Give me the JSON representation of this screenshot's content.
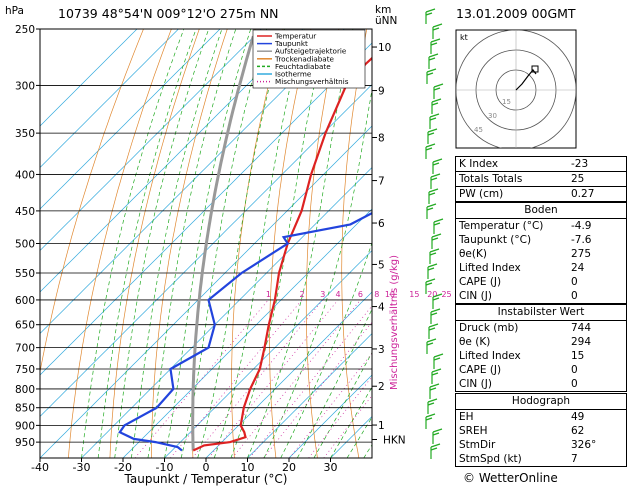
{
  "header": {
    "station": "10739  48°54'N  009°12'O   275m  NN",
    "datetime": "13.01.2009  00GMT"
  },
  "colors": {
    "temperature": "#dd2222",
    "dewpoint": "#2244dd",
    "parcel": "#999999",
    "dry_adiabat": "#e08830",
    "moist_adiabat": "#22aa22",
    "isotherm": "#33aadd",
    "mixing_ratio": "#cc2299",
    "wind": "#22aa22"
  },
  "chart_data": {
    "type": "line",
    "title": "",
    "xlabel": "Taupunkt / Temperatur (°C)",
    "ylabel": "hPa",
    "right_axis_label": "km\nüNN",
    "mixing_axis_label": "Mischungsverhältnis (g/kg)",
    "xlim": [
      -40,
      40
    ],
    "x_ticks": [
      "-40",
      "-30",
      "-20",
      "-10",
      "0",
      "10",
      "20",
      "30"
    ],
    "x_tick_values": [
      -40,
      -30,
      -20,
      -10,
      0,
      10,
      20,
      30
    ],
    "pressure_levels": [
      250,
      300,
      350,
      400,
      450,
      500,
      550,
      600,
      650,
      700,
      750,
      800,
      850,
      900,
      950
    ],
    "km_ticks": [
      {
        "label": "10",
        "p": 265
      },
      {
        "label": "9",
        "p": 305
      },
      {
        "label": "8",
        "p": 355
      },
      {
        "label": "7",
        "p": 408
      },
      {
        "label": "6",
        "p": 468
      },
      {
        "label": "5",
        "p": 535
      },
      {
        "label": "4",
        "p": 613
      },
      {
        "label": "3",
        "p": 703
      },
      {
        "label": "2",
        "p": 793
      },
      {
        "label": "1",
        "p": 899
      },
      {
        "label": "HKN",
        "p": 942
      }
    ],
    "mixing_ratio_labels": [
      "1",
      "2",
      "3",
      "4",
      "6",
      "8",
      "10",
      "15",
      "20",
      "25"
    ],
    "legend": [
      "Temperatur",
      "Taupunkt",
      "Aufsteigetrajektorie",
      "Trockenadiabate",
      "Feuchtadiabate",
      "Isotherme",
      "Mischungsverhältnis"
    ],
    "series": [
      {
        "name": "Temperatur",
        "points": [
          [
            976,
            -4.9
          ],
          [
            960,
            -3.5
          ],
          [
            950,
            2.0
          ],
          [
            935,
            4.5
          ],
          [
            920,
            3.0
          ],
          [
            900,
            0.5
          ],
          [
            850,
            -3.0
          ],
          [
            800,
            -6.0
          ],
          [
            750,
            -8.5
          ],
          [
            700,
            -12.5
          ],
          [
            650,
            -17.0
          ],
          [
            600,
            -21.5
          ],
          [
            550,
            -27.0
          ],
          [
            500,
            -32.0
          ],
          [
            450,
            -36.5
          ],
          [
            400,
            -43.0
          ],
          [
            350,
            -49.5
          ],
          [
            300,
            -56.0
          ],
          [
            280,
            -56.5
          ],
          [
            260,
            -56.0
          ],
          [
            250,
            -56.5
          ]
        ]
      },
      {
        "name": "Taupunkt",
        "points": [
          [
            976,
            -7.6
          ],
          [
            965,
            -9.5
          ],
          [
            950,
            -16.0
          ],
          [
            940,
            -22.0
          ],
          [
            920,
            -27.0
          ],
          [
            900,
            -27.5
          ],
          [
            850,
            -24.0
          ],
          [
            800,
            -24.5
          ],
          [
            750,
            -30.0
          ],
          [
            700,
            -26.0
          ],
          [
            650,
            -30.0
          ],
          [
            600,
            -37.5
          ],
          [
            550,
            -36.0
          ],
          [
            500,
            -32.0
          ],
          [
            490,
            -34.5
          ],
          [
            470,
            -21.5
          ],
          [
            450,
            -18.5
          ],
          [
            400,
            -28.0
          ],
          [
            360,
            -34.0
          ],
          [
            330,
            -34.0
          ],
          [
            300,
            -38.0
          ],
          [
            290,
            -38.0
          ],
          [
            280,
            -52.5
          ],
          [
            260,
            -49.5
          ],
          [
            250,
            -50.5
          ]
        ]
      }
    ],
    "wind_barbs_count": 30
  },
  "hodograph": {
    "label": "kt",
    "rings": [
      "15",
      "30",
      "45"
    ]
  },
  "indices": [
    {
      "label": "K Index",
      "value": "-23"
    },
    {
      "label": "Totals Totals",
      "value": "25"
    },
    {
      "label": "PW (cm)",
      "value": "0.27"
    }
  ],
  "surface": {
    "title": "Boden",
    "rows": [
      {
        "label": "Temperatur (°C)",
        "value": "-4.9"
      },
      {
        "label": "Taupunkt (°C)",
        "value": "-7.6"
      },
      {
        "label": "θe(K)",
        "value": "275"
      },
      {
        "label": "Lifted Index",
        "value": "24"
      },
      {
        "label": "CAPE (J)",
        "value": "0"
      },
      {
        "label": "CIN (J)",
        "value": "0"
      }
    ]
  },
  "unstable": {
    "title": "Instabilster Wert",
    "rows": [
      {
        "label": "Druck (mb)",
        "value": "744"
      },
      {
        "label": "θe (K)",
        "value": "294"
      },
      {
        "label": "Lifted Index",
        "value": "15"
      },
      {
        "label": "CAPE (J)",
        "value": "0"
      },
      {
        "label": "CIN (J)",
        "value": "0"
      }
    ]
  },
  "hodo_table": {
    "title": "Hodograph",
    "rows": [
      {
        "label": "EH",
        "value": "49"
      },
      {
        "label": "SREH",
        "value": "62"
      },
      {
        "label": "StmDir",
        "value": "326°"
      },
      {
        "label": "StmSpd (kt)",
        "value": "7"
      }
    ]
  },
  "footer": {
    "copyright": "© WetterOnline"
  }
}
